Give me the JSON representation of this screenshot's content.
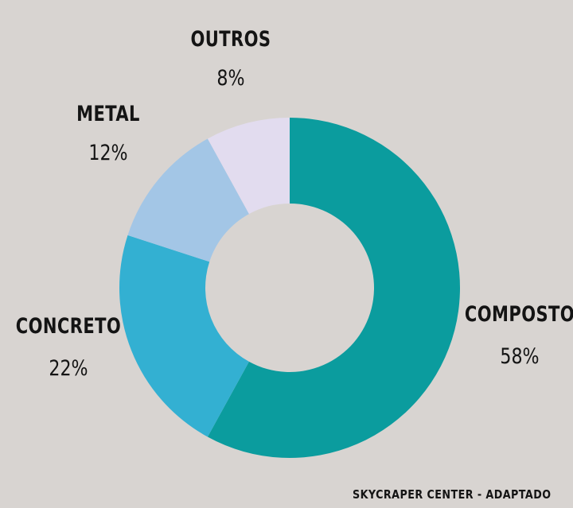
{
  "chart_data": {
    "type": "pie",
    "donut": true,
    "categories": [
      "COMPOSTO",
      "CONCRETO",
      "METAL",
      "OUTROS"
    ],
    "values": [
      58,
      22,
      12,
      8
    ],
    "percent_labels": [
      "58%",
      "22%",
      "12%",
      "8%"
    ],
    "colors": [
      "#0b9c9e",
      "#33b0d2",
      "#a3c6e6",
      "#e2dcef"
    ],
    "source": "SKYCRAPER CENTER - ADAPTADO"
  }
}
